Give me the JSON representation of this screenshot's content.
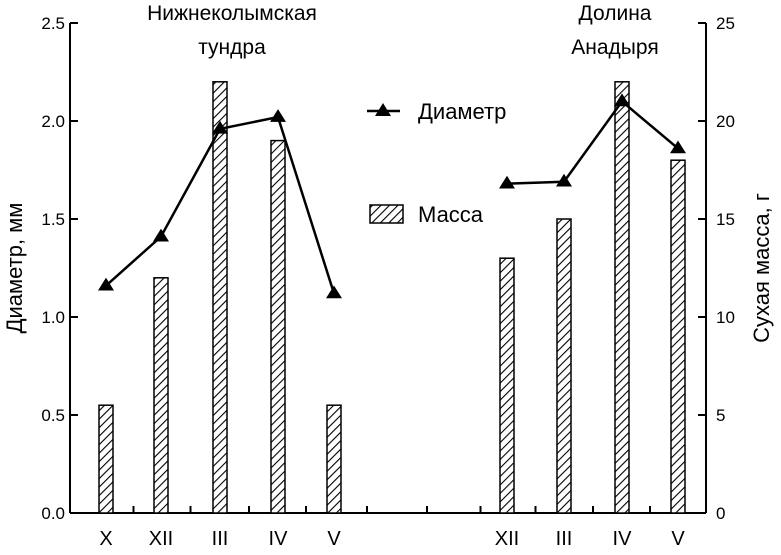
{
  "chart_data": {
    "type": "bar",
    "groups": [
      {
        "title_lines": [
          "Нижнеколымская",
          "тундра"
        ],
        "categories": [
          "X",
          "XII",
          "III",
          "IV",
          "V"
        ],
        "mass": [
          5.5,
          12,
          22,
          19,
          5.5
        ],
        "diameter": [
          1.16,
          1.41,
          1.96,
          2.02,
          1.12
        ]
      },
      {
        "title_lines": [
          "Долина",
          "Анадыря"
        ],
        "categories": [
          "XII",
          "III",
          "IV",
          "V"
        ],
        "mass": [
          13,
          15,
          22,
          18
        ],
        "diameter": [
          1.68,
          1.69,
          2.1,
          1.86
        ]
      }
    ],
    "series": [
      {
        "name": "Диаметр",
        "type": "line",
        "axis": "left",
        "color": "#000000"
      },
      {
        "name": "Масса",
        "type": "bar",
        "axis": "right",
        "pattern": "diagonal-hatch"
      }
    ],
    "ylabel_left": "Диаметр, мм",
    "ylabel_right": "Сухая масса, г",
    "ylim_left": [
      0,
      2.5
    ],
    "ylim_right": [
      0,
      25
    ],
    "yticks_left": [
      "0.0",
      "0.5",
      "1.0",
      "1.5",
      "2.0",
      "2.5"
    ],
    "yticks_right": [
      "0",
      "5",
      "10",
      "15",
      "20",
      "25"
    ],
    "grid": false,
    "legend_position": "center"
  }
}
